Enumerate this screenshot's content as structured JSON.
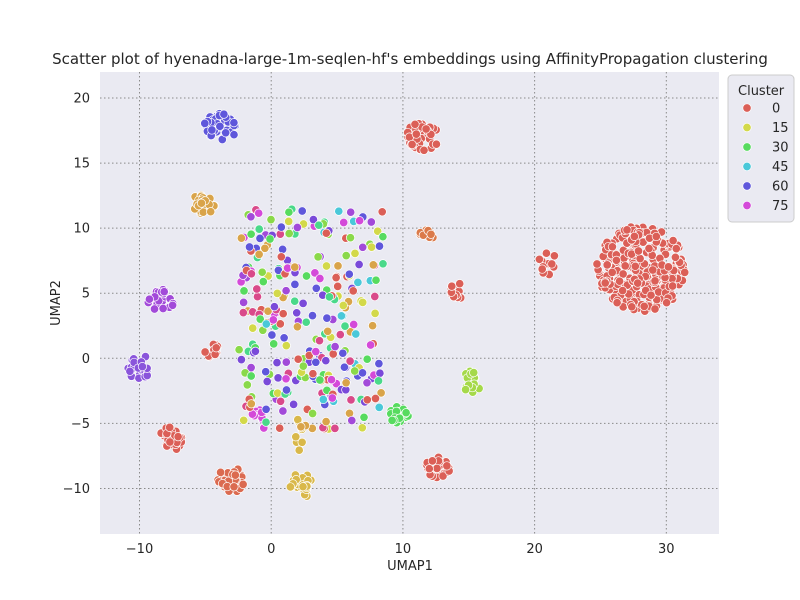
{
  "chart_data": {
    "type": "scatter",
    "title": "Scatter plot of hyenadna-large-1m-seqlen-hf's embeddings using AffinityPropagation clustering",
    "xlabel": "UMAP1",
    "ylabel": "UMAP2",
    "xlim": [
      -13,
      34
    ],
    "ylim": [
      -13.5,
      22
    ],
    "xticks": [
      -10,
      0,
      10,
      20,
      30
    ],
    "yticks": [
      -10,
      -5,
      0,
      5,
      10,
      15,
      20
    ],
    "grid": true,
    "grid_style": "dotted",
    "background": "#eaeaf2",
    "legend": {
      "title": "Cluster",
      "placement": "upper-right-outside",
      "entries": [
        {
          "label": "0",
          "color": "#db5f57"
        },
        {
          "label": "15",
          "color": "#d3d94a"
        },
        {
          "label": "30",
          "color": "#57db5f"
        },
        {
          "label": "45",
          "color": "#4ac8d9"
        },
        {
          "label": "60",
          "color": "#5f57db"
        },
        {
          "label": "75",
          "color": "#d44ad9"
        }
      ]
    },
    "clusters": [
      {
        "name": "large-right",
        "color": "#db5f57",
        "cx": 28.2,
        "cy": 6.9,
        "rx": 3.5,
        "ry": 3.3,
        "n": 300
      },
      {
        "name": "right-tail",
        "color": "#db5f57",
        "cx": 21.0,
        "cy": 7.4,
        "rx": 0.7,
        "ry": 1.0,
        "n": 12
      },
      {
        "name": "top-right-red",
        "color": "#db5f57",
        "cx": 11.5,
        "cy": 17.0,
        "rx": 1.3,
        "ry": 1.1,
        "n": 45
      },
      {
        "name": "top-blue",
        "color": "#5f57db",
        "cx": -3.8,
        "cy": 17.8,
        "rx": 1.3,
        "ry": 1.0,
        "n": 40
      },
      {
        "name": "top-orange",
        "color": "#d9a44a",
        "cx": -5.2,
        "cy": 11.8,
        "rx": 0.9,
        "ry": 0.8,
        "n": 22
      },
      {
        "name": "left-purple",
        "color": "#a24ad9",
        "cx": -8.4,
        "cy": 4.4,
        "rx": 1.0,
        "ry": 0.9,
        "n": 22
      },
      {
        "name": "far-left-purple",
        "color": "#8a55db",
        "cx": -10.0,
        "cy": -0.7,
        "rx": 0.9,
        "ry": 1.0,
        "n": 24
      },
      {
        "name": "left-red",
        "color": "#db5f57",
        "cx": -7.6,
        "cy": -6.2,
        "rx": 0.9,
        "ry": 1.0,
        "n": 28
      },
      {
        "name": "bottom-red",
        "color": "#db6a50",
        "cx": -3.0,
        "cy": -9.4,
        "rx": 1.1,
        "ry": 1.0,
        "n": 35
      },
      {
        "name": "bottom-yellow",
        "color": "#d9b84a",
        "cx": 2.3,
        "cy": -9.7,
        "rx": 0.9,
        "ry": 1.0,
        "n": 30
      },
      {
        "name": "yellow-trail",
        "color": "#d9b84a",
        "cx": 2.1,
        "cy": -6.0,
        "rx": 0.4,
        "ry": 1.6,
        "n": 8
      },
      {
        "name": "mid-bottom-green",
        "color": "#57db5f",
        "cx": 9.7,
        "cy": -4.4,
        "rx": 0.7,
        "ry": 0.8,
        "n": 18
      },
      {
        "name": "bottom-right-red",
        "color": "#db5f57",
        "cx": 12.6,
        "cy": -8.4,
        "rx": 1.0,
        "ry": 0.8,
        "n": 28
      },
      {
        "name": "right-mixed",
        "color": "#a5d94a",
        "cx": 15.3,
        "cy": -1.8,
        "rx": 0.8,
        "ry": 0.9,
        "n": 16
      },
      {
        "name": "right-red-small",
        "color": "#db5f57",
        "cx": 14.2,
        "cy": 5.2,
        "rx": 0.7,
        "ry": 0.7,
        "n": 14
      },
      {
        "name": "right-orange-small",
        "color": "#db7a4a",
        "cx": 11.8,
        "cy": 9.6,
        "rx": 0.6,
        "ry": 0.6,
        "n": 10
      },
      {
        "name": "small-red-left",
        "color": "#db5f57",
        "cx": -4.5,
        "cy": 0.5,
        "rx": 0.7,
        "ry": 0.6,
        "n": 14
      },
      {
        "name": "small-pink-left",
        "color": "#d44ad9",
        "cx": -1.0,
        "cy": -4.4,
        "rx": 0.6,
        "ry": 0.5,
        "n": 10
      },
      {
        "name": "center-scatter",
        "color": "mixed",
        "cx": 3.0,
        "cy": 3.0,
        "rx": 5.5,
        "ry": 8.5,
        "n": 300
      }
    ]
  }
}
